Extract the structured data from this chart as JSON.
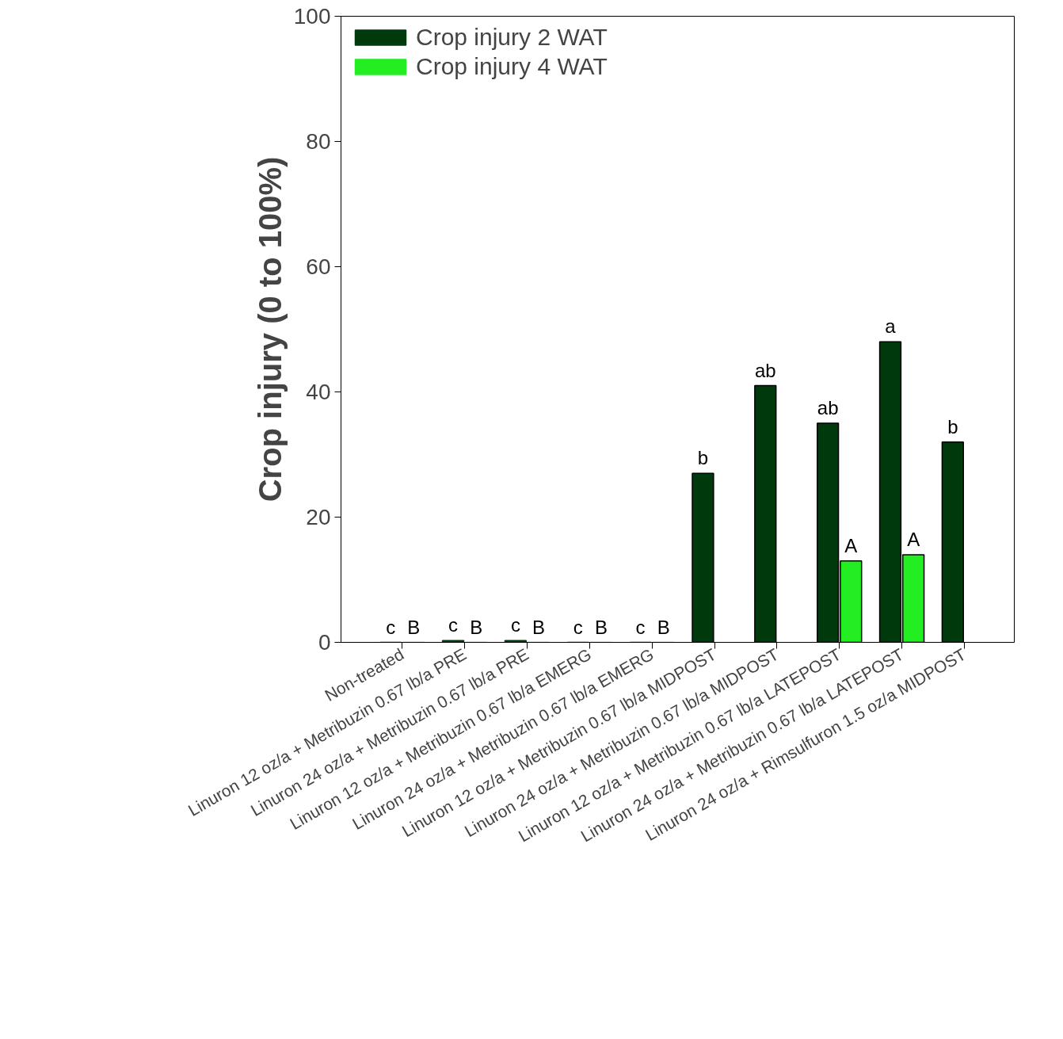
{
  "chart_data": {
    "type": "bar",
    "ylabel": "Crop injury (0 to 100%)",
    "categories": [
      "Non-treated",
      "Linuron 12 oz/a + Metribuzin 0.67 lb/a PRE",
      "Linuron 24 oz/a + Metribuzin 0.67 lb/a PRE",
      "Linuron 12 oz/a + Metribuzin 0.67 lb/a EMERG",
      "Linuron 24 oz/a + Metribuzin 0.67 lb/a EMERG",
      "Linuron 12 oz/a + Metribuzin 0.67 lb/a MIDPOST",
      "Linuron 24 oz/a + Metribuzin 0.67 lb/a MIDPOST",
      "Linuron 12 oz/a + Metribuzin 0.67 lb/a LATEPOST",
      "Linuron 24 oz/a + Metribuzin 0.67 lb/a LATEPOST",
      "Linuron 24 oz/a + Rimsulfuron 1.5 oz/a MIDPOST"
    ],
    "series": [
      {
        "name": "Crop injury 2 WAT",
        "color": "#003a0c",
        "values": [
          0,
          0.3,
          0.3,
          0,
          0,
          27,
          41,
          35,
          48,
          32
        ],
        "value_labels": [
          "c",
          "c",
          "c",
          "c",
          "c",
          "b",
          "ab",
          "ab",
          "a",
          "b"
        ]
      },
      {
        "name": "Crop injury 4 WAT",
        "color": "#22ee22",
        "values": [
          0,
          0,
          0,
          0,
          0,
          null,
          null,
          13,
          14,
          null
        ],
        "value_labels": [
          "B",
          "B",
          "B",
          "B",
          "B",
          null,
          null,
          "A",
          "A",
          null
        ]
      }
    ],
    "ylim": [
      0,
      100
    ],
    "yticks": [
      0,
      20,
      40,
      60,
      80,
      100
    ],
    "grid": false,
    "legend": "top left"
  }
}
